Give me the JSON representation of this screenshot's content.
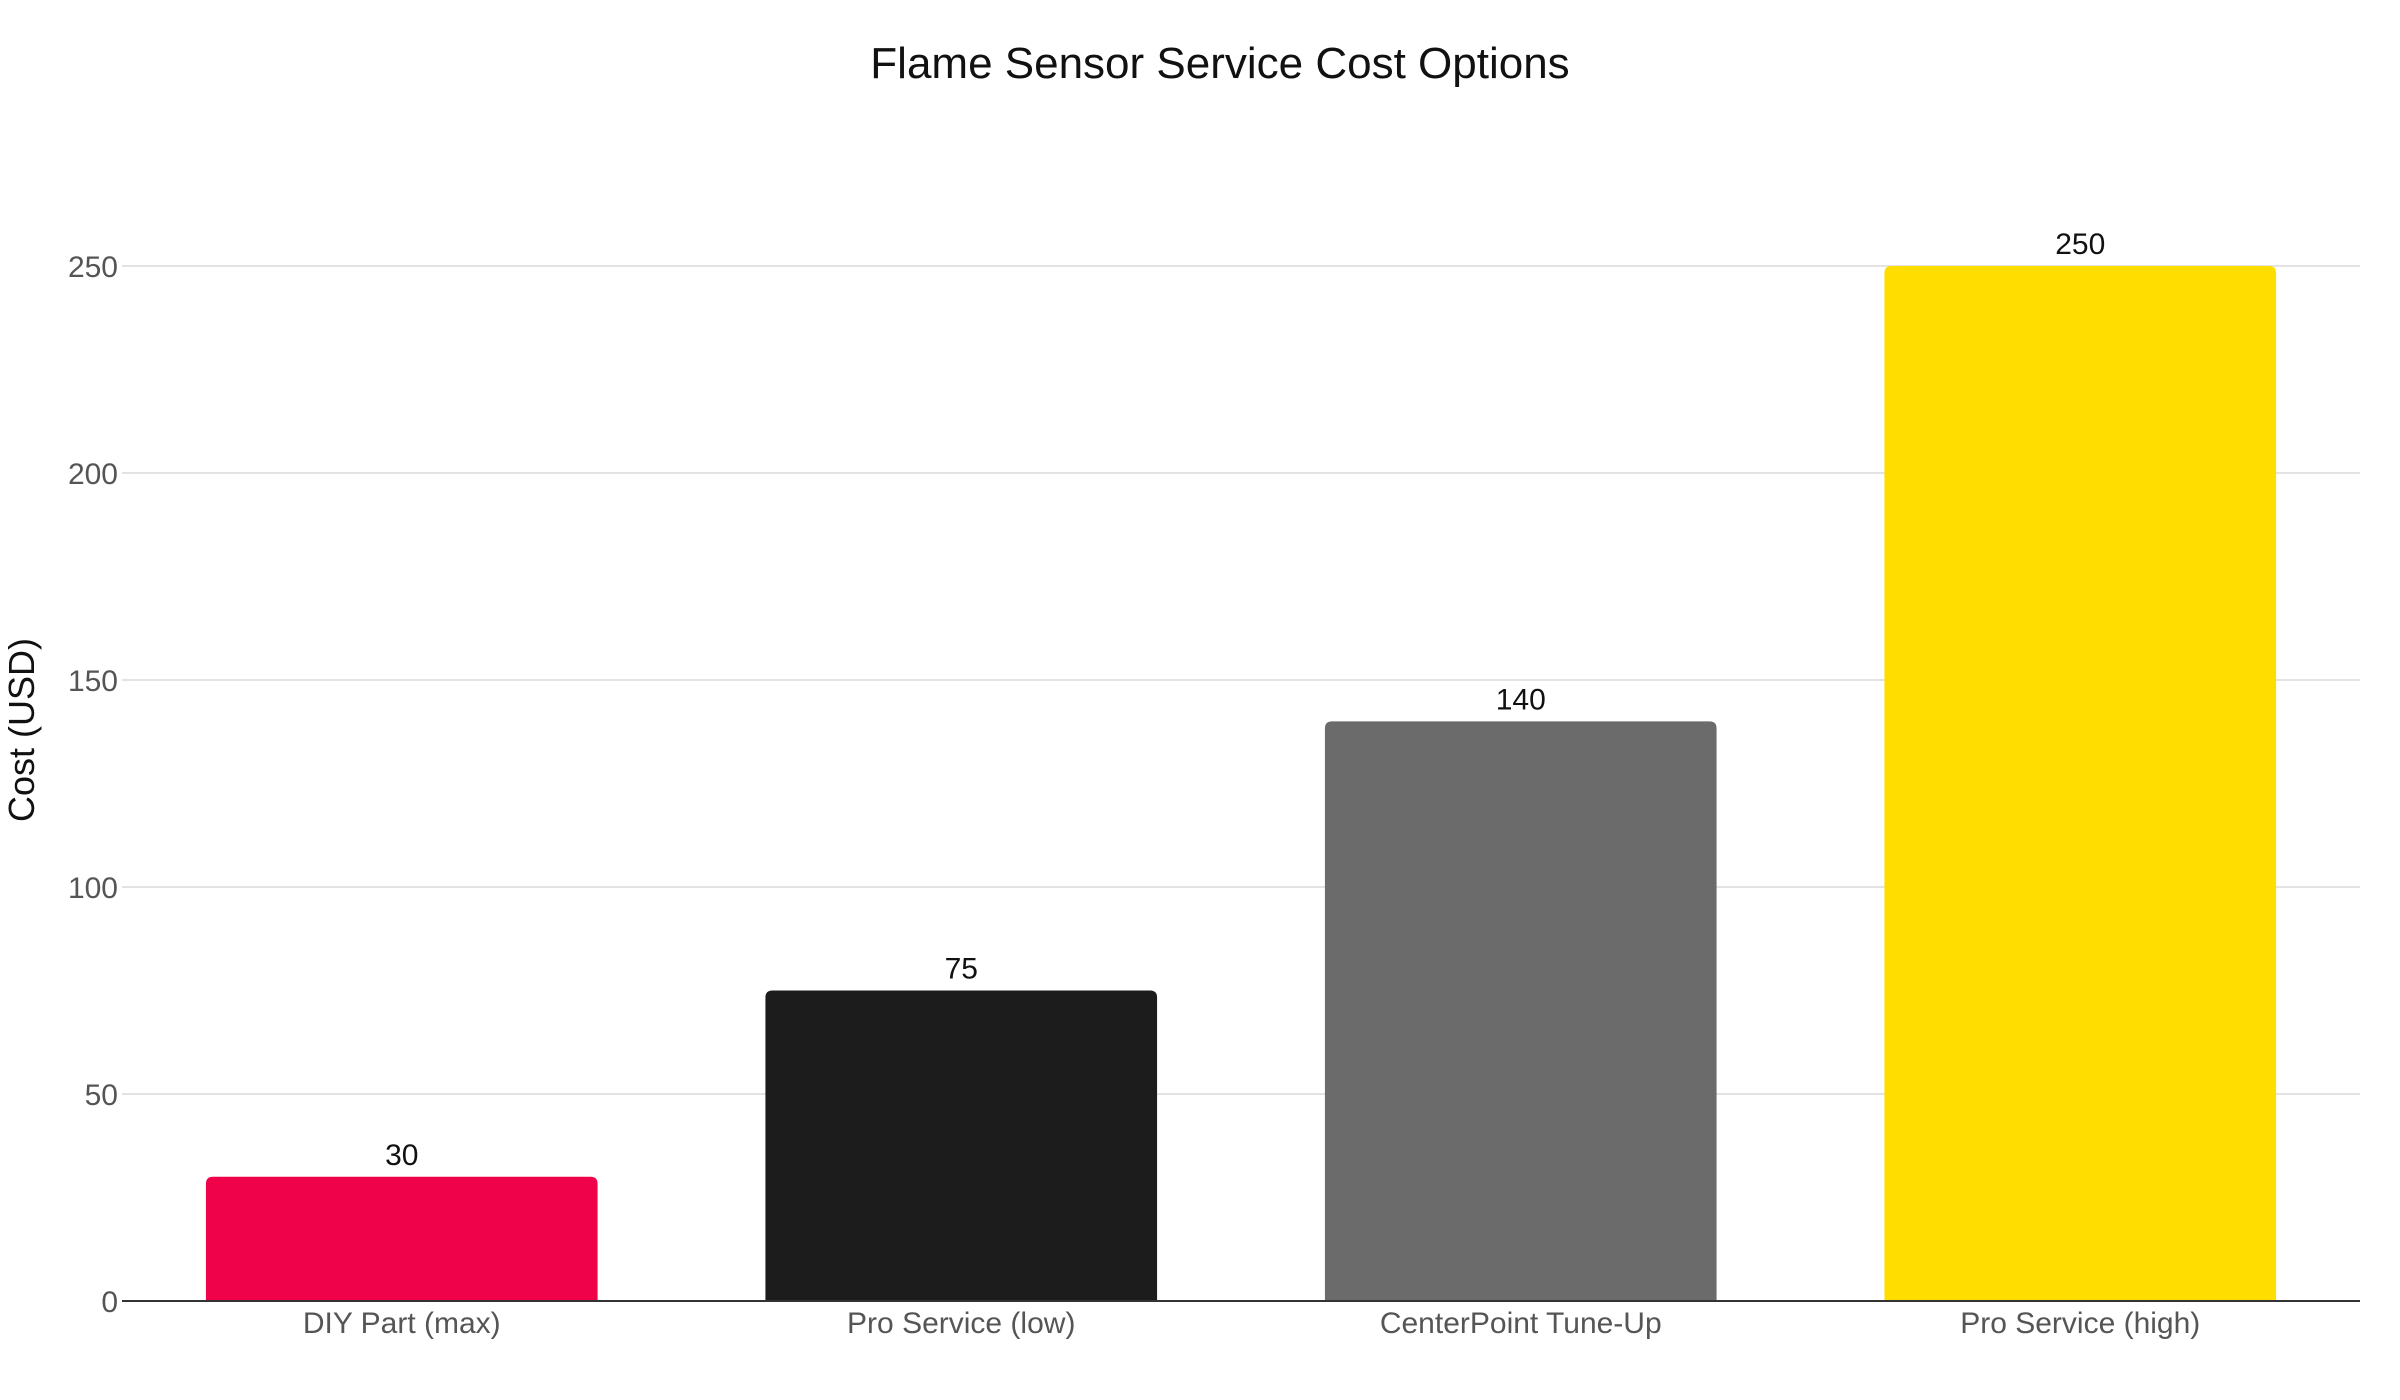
{
  "chart_data": {
    "type": "bar",
    "title": "Flame Sensor Service Cost Options",
    "xlabel": "",
    "ylabel": "Cost (USD)",
    "categories": [
      "DIY Part (max)",
      "Pro Service (low)",
      "CenterPoint Tune-Up",
      "Pro Service (high)"
    ],
    "values": [
      30,
      75,
      140,
      250
    ],
    "data_labels": [
      "30",
      "75",
      "140",
      "250"
    ],
    "colors": [
      "#f0024a",
      "#1c1c1c",
      "#6b6b6b",
      "#ffdd00"
    ],
    "ylim": [
      0,
      250
    ],
    "yticks": [
      0,
      50,
      100,
      150,
      200,
      250
    ],
    "ytick_labels": [
      "0",
      "50",
      "100",
      "150",
      "200",
      "250"
    ],
    "grid": true,
    "legend": "none"
  }
}
